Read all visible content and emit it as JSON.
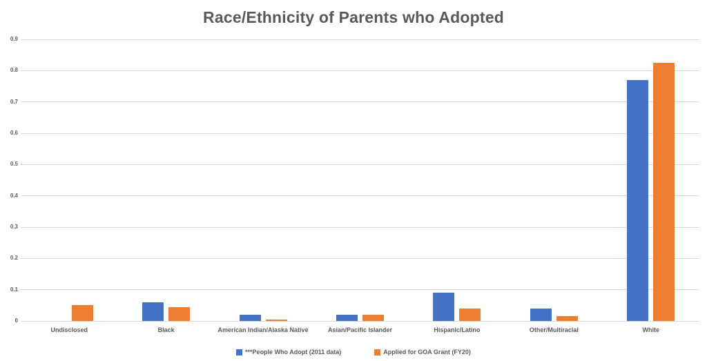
{
  "colors": {
    "series_blue": "#4472C4",
    "series_orange": "#ED7D31",
    "gridline": "#D9D9D9",
    "text": "#595959",
    "background": "#FFFFFF"
  },
  "chart_data": {
    "type": "bar",
    "title": "Race/Ethnicity of Parents who Adopted",
    "categories": [
      "Undisclosed",
      "Black",
      "American Indian/Alaska Native",
      "Asian/Pacific Islander",
      "Hispanic/Latino",
      "Other/Multiracial",
      "White"
    ],
    "series": [
      {
        "name": "***People Who Adopt (2011 data)",
        "color": "#4472C4",
        "values": [
          0,
          0.06,
          0.02,
          0.02,
          0.09,
          0.04,
          0.77
        ]
      },
      {
        "name": "Applied for GOA Grant (FY20)",
        "color": "#ED7D31",
        "values": [
          0.05,
          0.045,
          0.005,
          0.02,
          0.04,
          0.015,
          0.825
        ]
      }
    ],
    "xlabel": "",
    "ylabel": "",
    "ylim": [
      0,
      0.9
    ],
    "y_ticks": [
      "0",
      "0.1",
      "0.2",
      "0.3",
      "0.4",
      "0.5",
      "0.6",
      "0.7",
      "0.8",
      "0.9"
    ],
    "grid": true,
    "legend_position": "bottom"
  }
}
